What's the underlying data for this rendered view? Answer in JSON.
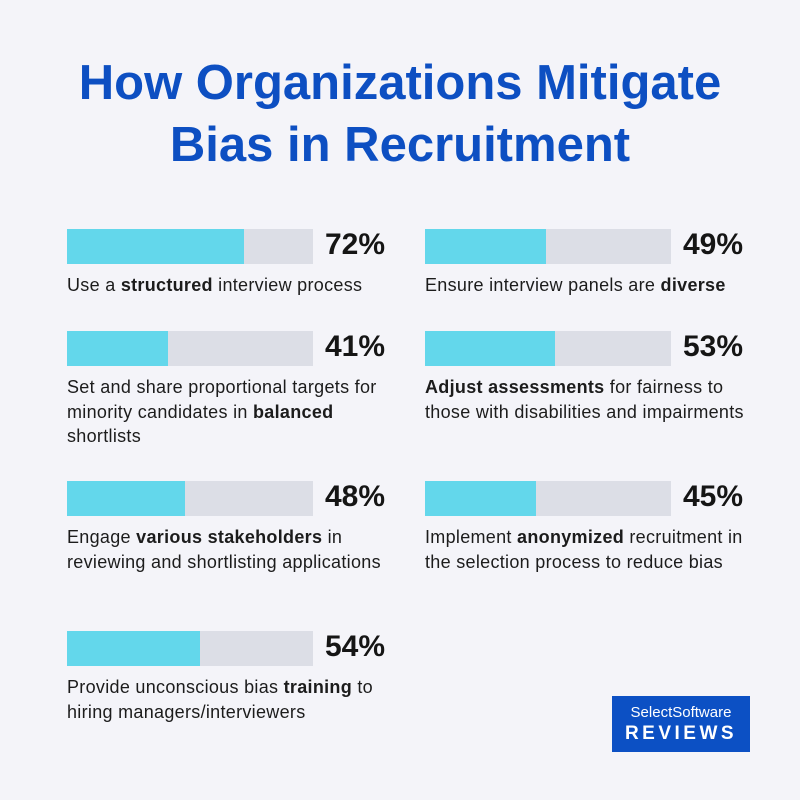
{
  "title": [
    "How Organizations Mitigate",
    "Bias in Recruitment"
  ],
  "colors": {
    "title": "#0d4fc2",
    "bar_fill": "#63d7eb",
    "bar_track": "#dcdee6",
    "logo_bg": "#0c50c4"
  },
  "chart_data": {
    "type": "bar",
    "orientation": "horizontal",
    "ylim": [
      0,
      100
    ],
    "items": [
      {
        "value": 72,
        "value_label": "72%",
        "label": [
          [
            "Use a ",
            false
          ],
          [
            "structured",
            true
          ],
          [
            " interview process",
            false
          ]
        ]
      },
      {
        "value": 49,
        "value_label": "49%",
        "label": [
          [
            "Ensure interview panels are ",
            false
          ],
          [
            "diverse",
            true
          ]
        ]
      },
      {
        "value": 41,
        "value_label": "41%",
        "label": [
          [
            "Set and share proportional targets for minority candidates in ",
            false
          ],
          [
            "balanced",
            true
          ],
          [
            " shortlists",
            false
          ]
        ]
      },
      {
        "value": 53,
        "value_label": "53%",
        "label": [
          [
            "Adjust assessments",
            true
          ],
          [
            " for fairness to those with disabilities and impairments",
            false
          ]
        ]
      },
      {
        "value": 48,
        "value_label": "48%",
        "label": [
          [
            "Engage ",
            false
          ],
          [
            "various stakeholders",
            true
          ],
          [
            " in reviewing and shortlisting applications",
            false
          ]
        ]
      },
      {
        "value": 45,
        "value_label": "45%",
        "label": [
          [
            "Implement ",
            false
          ],
          [
            "anonymized",
            true
          ],
          [
            " recruitment in the selection process to reduce bias",
            false
          ]
        ]
      },
      {
        "value": 54,
        "value_label": "54%",
        "label": [
          [
            "Provide unconscious bias ",
            false
          ],
          [
            "training",
            true
          ],
          [
            " to hiring managers/interviewers",
            false
          ]
        ]
      }
    ]
  },
  "logo": {
    "line1": "SelectSoftware",
    "line2": "REVIEWS"
  }
}
